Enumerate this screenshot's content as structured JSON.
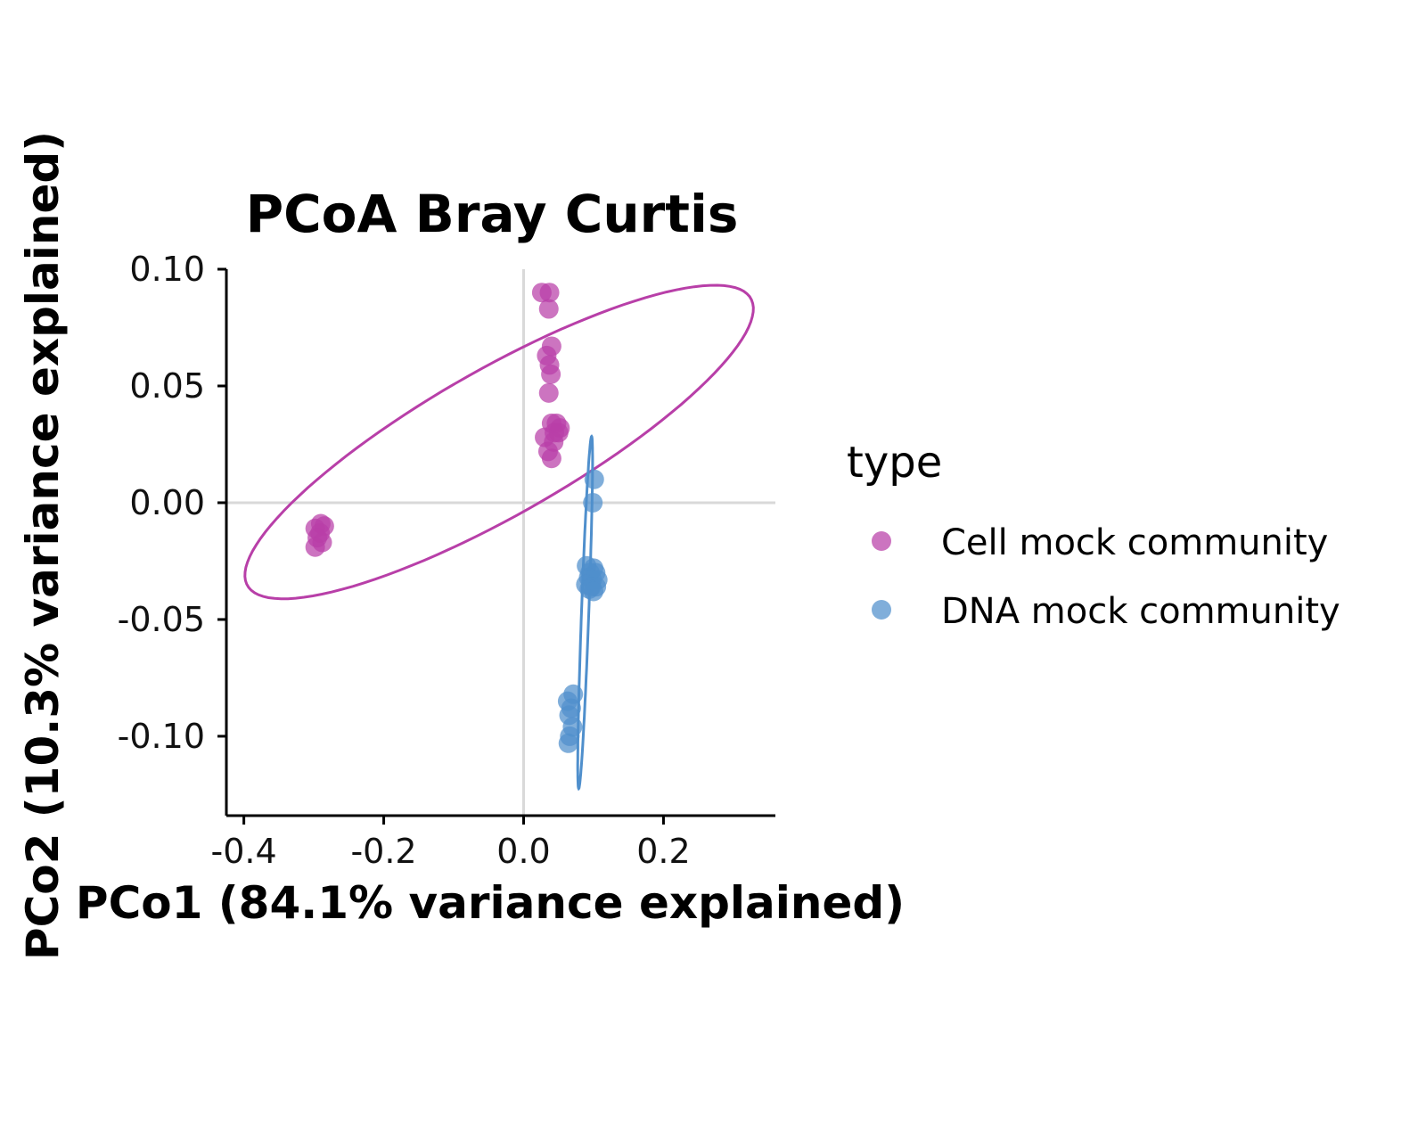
{
  "chart_data": {
    "type": "scatter",
    "title": "PCoA Bray Curtis",
    "xlabel": "PCo1 (84.1% variance explained)",
    "ylabel": "PCo2 (10.3% variance explained)",
    "xlim": [
      -0.425,
      0.36
    ],
    "ylim": [
      -0.134,
      0.1
    ],
    "x_ticks": [
      -0.4,
      -0.2,
      0.0,
      0.2
    ],
    "x_tick_labels": [
      "-0.4",
      "-0.2",
      "0.0",
      "0.2"
    ],
    "y_ticks": [
      0.1,
      0.05,
      0.0,
      -0.05,
      -0.1
    ],
    "y_tick_labels": [
      "0.10",
      "0.05",
      "0.00",
      "-0.05",
      "-0.10"
    ],
    "reference_lines": {
      "x": 0,
      "y": 0
    },
    "legend": {
      "title": "type",
      "position": "right"
    },
    "series": [
      {
        "name": "Cell mock community",
        "color": "#b83fa8",
        "points": [
          [
            0.026,
            0.09
          ],
          [
            0.037,
            0.09
          ],
          [
            0.036,
            0.083
          ],
          [
            0.04,
            0.067
          ],
          [
            0.033,
            0.063
          ],
          [
            0.037,
            0.059
          ],
          [
            0.039,
            0.055
          ],
          [
            0.036,
            0.047
          ],
          [
            0.04,
            0.034
          ],
          [
            0.047,
            0.034
          ],
          [
            0.052,
            0.032
          ],
          [
            0.044,
            0.03
          ],
          [
            0.05,
            0.03
          ],
          [
            0.03,
            0.028
          ],
          [
            0.043,
            0.026
          ],
          [
            0.035,
            0.022
          ],
          [
            0.04,
            0.019
          ],
          [
            -0.29,
            -0.009
          ],
          [
            -0.285,
            -0.01
          ],
          [
            -0.298,
            -0.011
          ],
          [
            -0.291,
            -0.013
          ],
          [
            -0.295,
            -0.015
          ],
          [
            -0.288,
            -0.017
          ],
          [
            -0.298,
            -0.019
          ]
        ],
        "ellipse": {
          "cx": -0.035,
          "cy": 0.026,
          "rx": 0.368,
          "ry": 0.035,
          "angle_deg": 9.0
        }
      },
      {
        "name": "DNA mock community",
        "color": "#4f8fcc",
        "points": [
          [
            0.101,
            0.01
          ],
          [
            0.099,
            0.0
          ],
          [
            0.09,
            -0.027
          ],
          [
            0.1,
            -0.028
          ],
          [
            0.095,
            -0.03
          ],
          [
            0.103,
            -0.03
          ],
          [
            0.093,
            -0.032
          ],
          [
            0.098,
            -0.033
          ],
          [
            0.106,
            -0.033
          ],
          [
            0.089,
            -0.035
          ],
          [
            0.097,
            -0.036
          ],
          [
            0.104,
            -0.036
          ],
          [
            0.094,
            -0.037
          ],
          [
            0.1,
            -0.038
          ],
          [
            0.071,
            -0.082
          ],
          [
            0.063,
            -0.085
          ],
          [
            0.068,
            -0.088
          ],
          [
            0.065,
            -0.091
          ],
          [
            0.07,
            -0.096
          ],
          [
            0.066,
            -0.1
          ],
          [
            0.064,
            -0.103
          ]
        ],
        "ellipse": {
          "cx": 0.088,
          "cy": -0.047,
          "rx": 0.076,
          "ry": 0.0052,
          "angle_deg": 83.0
        }
      }
    ]
  }
}
